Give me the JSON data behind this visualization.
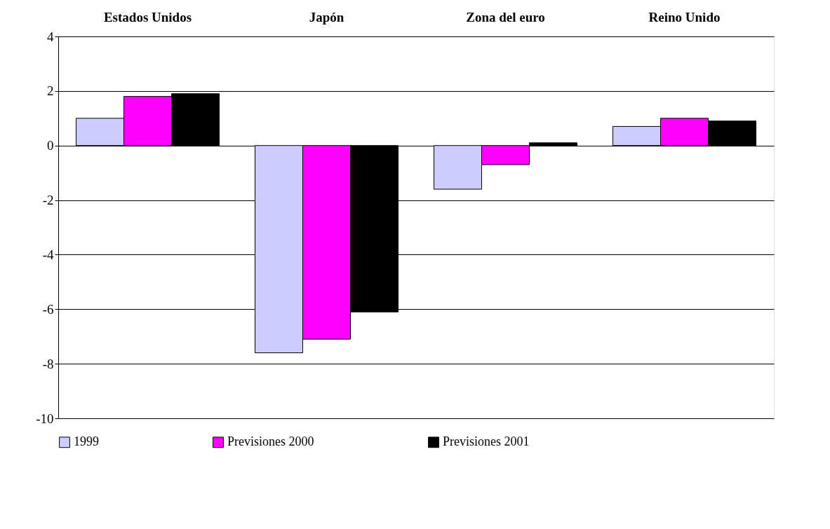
{
  "chart_data": {
    "type": "bar",
    "categories": [
      "Estados Unidos",
      "Japón",
      "Zona del euro",
      "Reino Unido"
    ],
    "series": [
      {
        "name": "1999",
        "color": "#ccccff",
        "values": [
          1.0,
          -7.6,
          -1.6,
          0.7
        ]
      },
      {
        "name": "Previsiones 2000",
        "color": "#ff00ff",
        "values": [
          1.8,
          -7.1,
          -0.7,
          1.0
        ]
      },
      {
        "name": "Previsiones 2001",
        "color": "#000000",
        "values": [
          1.9,
          -6.1,
          0.1,
          0.9
        ]
      }
    ],
    "ylim": [
      -10,
      4
    ],
    "yticks": [
      -10,
      -8,
      -6,
      -4,
      -2,
      0,
      2,
      4
    ],
    "grid": "y",
    "legend": "bottom"
  }
}
